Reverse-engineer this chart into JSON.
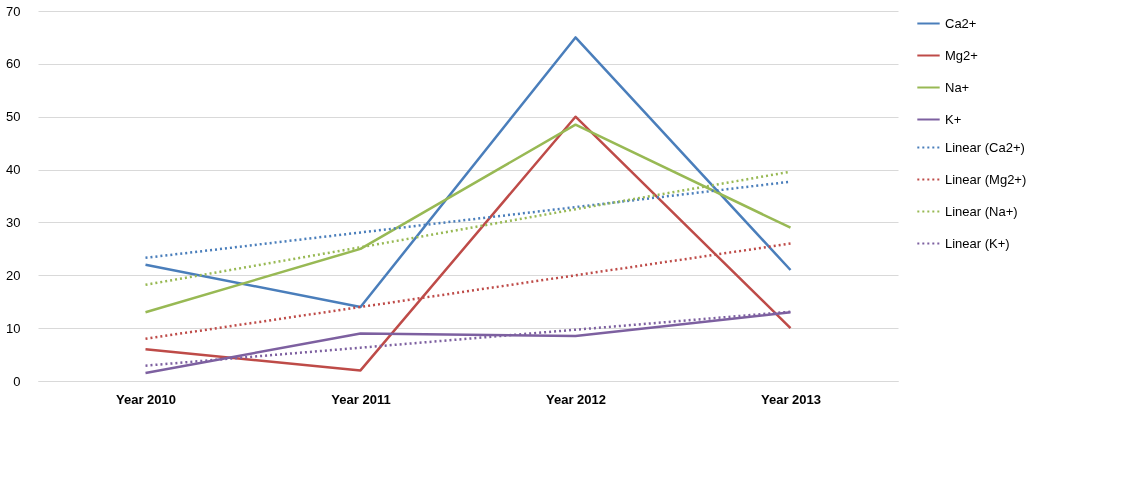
{
  "chart_data": {
    "type": "line",
    "categories": [
      "Year 2010",
      "Year 2011",
      "Year 2012",
      "Year 2013"
    ],
    "ylim": [
      0,
      70
    ],
    "yticks": [
      0,
      10,
      20,
      30,
      40,
      50,
      60,
      70
    ],
    "grid": "y",
    "legend": "right",
    "marker": "none",
    "series": [
      {
        "name": "Ca2+",
        "color": "#4a7ebb",
        "values": [
          22,
          14,
          65,
          21
        ],
        "line_style": "solid"
      },
      {
        "name": "Mg2+",
        "color": "#be4b48",
        "values": [
          6,
          2,
          50,
          10
        ],
        "line_style": "solid"
      },
      {
        "name": "Na+",
        "color": "#98b954",
        "values": [
          13,
          25,
          48.5,
          29
        ],
        "line_style": "solid"
      },
      {
        "name": "K+",
        "color": "#7d60a0",
        "values": [
          1.5,
          9,
          8.5,
          13
        ],
        "line_style": "solid"
      },
      {
        "name": "Linear (Ca2+)",
        "type": "line",
        "color": "#4a7ebb",
        "values": [
          23.3,
          28.1,
          32.9,
          37.7
        ],
        "line_style": "dotted"
      },
      {
        "name": "Linear (Mg2+)",
        "type": "line",
        "color": "#be4b48",
        "values": [
          8,
          14,
          20,
          26
        ],
        "line_style": "dotted"
      },
      {
        "name": "Linear (Na+)",
        "type": "line",
        "color": "#98b954",
        "values": [
          18.2,
          25.3,
          32.5,
          39.6
        ],
        "line_style": "dotted"
      },
      {
        "name": "Linear (K+)",
        "type": "line",
        "color": "#7d60a0",
        "values": [
          2.9,
          6.3,
          9.7,
          13.1
        ],
        "line_style": "dotted"
      }
    ]
  }
}
